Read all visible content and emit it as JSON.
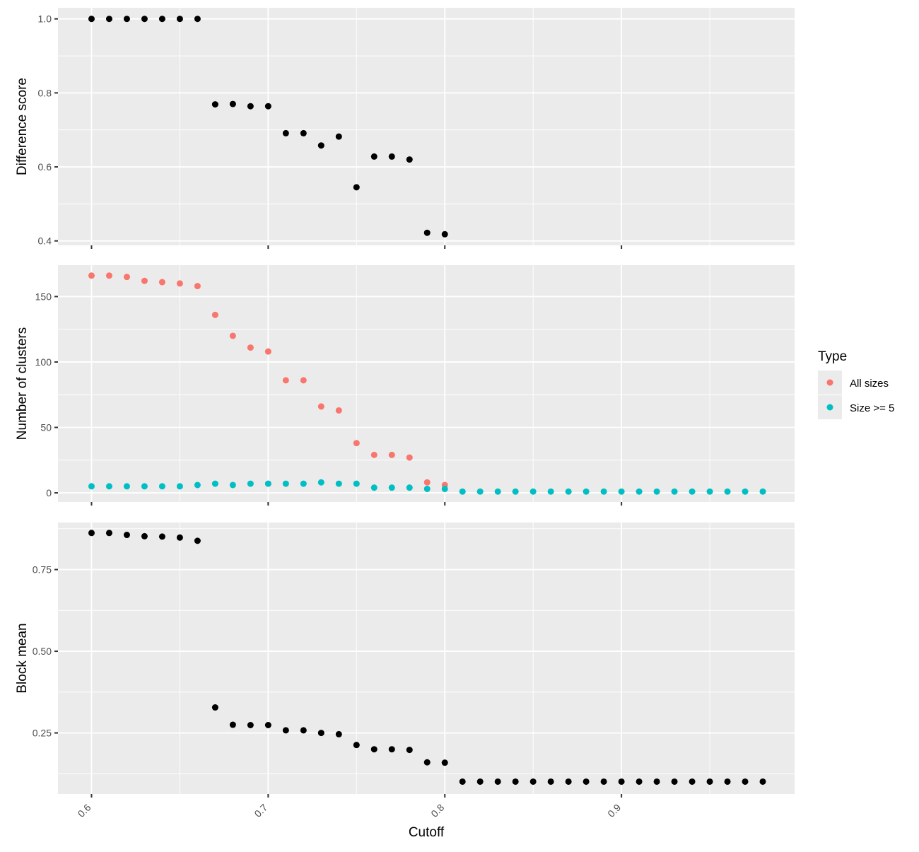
{
  "chart_data": {
    "type": "scatter",
    "xlabel": "Cutoff",
    "x_ticks": [
      "0.6",
      "0.7",
      "0.8",
      "0.9"
    ],
    "x_tick_values": [
      0.6,
      0.7,
      0.8,
      0.9
    ],
    "xlim": [
      0.581,
      0.998
    ],
    "grid": true,
    "legend_position": "right",
    "legend": {
      "title": "Type",
      "entries": [
        {
          "label": "All sizes",
          "color": "#F8766D"
        },
        {
          "label": "Size >= 5",
          "color": "#00BFC4"
        }
      ]
    },
    "colors": {
      "panel_bg": "#EBEBEB",
      "grid": "#FFFFFF",
      "point_default": "#000000"
    },
    "panels": [
      {
        "ylabel": "Difference score",
        "ylim": [
          0.388,
          1.03
        ],
        "y_ticks": [
          "0.4",
          "0.6",
          "0.8",
          "1.0"
        ],
        "y_tick_values": [
          0.4,
          0.6,
          0.8,
          1.0
        ],
        "series": [
          {
            "color": "#000000",
            "x": [
              0.6,
              0.61,
              0.62,
              0.63,
              0.64,
              0.65,
              0.66,
              0.67,
              0.68,
              0.69,
              0.7,
              0.71,
              0.72,
              0.73,
              0.74,
              0.75,
              0.76,
              0.77,
              0.78,
              0.79,
              0.8
            ],
            "y": [
              1.0,
              1.0,
              1.0,
              1.0,
              1.0,
              1.0,
              1.0,
              0.769,
              0.77,
              0.764,
              0.764,
              0.691,
              0.691,
              0.658,
              0.682,
              0.545,
              0.628,
              0.628,
              0.62,
              0.422,
              0.418
            ]
          }
        ]
      },
      {
        "ylabel": "Number of clusters",
        "ylim": [
          -7,
          174
        ],
        "y_ticks": [
          "0",
          "50",
          "100",
          "150"
        ],
        "y_tick_values": [
          0,
          50,
          100,
          150
        ],
        "series": [
          {
            "name": "All sizes",
            "color": "#F8766D",
            "x": [
              0.6,
              0.61,
              0.62,
              0.63,
              0.64,
              0.65,
              0.66,
              0.67,
              0.68,
              0.69,
              0.7,
              0.71,
              0.72,
              0.73,
              0.74,
              0.75,
              0.76,
              0.77,
              0.78,
              0.79,
              0.8
            ],
            "y": [
              166,
              166,
              165,
              162,
              161,
              160,
              158,
              136,
              120,
              111,
              108,
              86,
              86,
              66,
              63,
              38,
              29,
              29,
              27,
              8,
              6
            ]
          },
          {
            "name": "Size >= 5",
            "color": "#00BFC4",
            "x": [
              0.6,
              0.61,
              0.62,
              0.63,
              0.64,
              0.65,
              0.66,
              0.67,
              0.68,
              0.69,
              0.7,
              0.71,
              0.72,
              0.73,
              0.74,
              0.75,
              0.76,
              0.77,
              0.78,
              0.79,
              0.8,
              0.81,
              0.82,
              0.83,
              0.84,
              0.85,
              0.86,
              0.87,
              0.88,
              0.89,
              0.9,
              0.91,
              0.92,
              0.93,
              0.94,
              0.95,
              0.96,
              0.97,
              0.98
            ],
            "y": [
              5,
              5,
              5,
              5,
              5,
              5,
              6,
              7,
              6,
              7,
              7,
              7,
              7,
              8,
              7,
              7,
              4,
              4,
              4,
              3,
              3,
              1,
              1,
              1,
              1,
              1,
              1,
              1,
              1,
              1,
              1,
              1,
              1,
              1,
              1,
              1,
              1,
              1,
              1
            ]
          }
        ]
      },
      {
        "ylabel": "Block mean",
        "ylim": [
          0.063,
          0.894
        ],
        "y_ticks": [
          "0.25",
          "0.50",
          "0.75"
        ],
        "y_tick_values": [
          0.25,
          0.5,
          0.75
        ],
        "series": [
          {
            "color": "#000000",
            "x": [
              0.6,
              0.61,
              0.62,
              0.63,
              0.64,
              0.65,
              0.66,
              0.67,
              0.68,
              0.69,
              0.7,
              0.71,
              0.72,
              0.73,
              0.74,
              0.75,
              0.76,
              0.77,
              0.78,
              0.79,
              0.8,
              0.81,
              0.82,
              0.83,
              0.84,
              0.85,
              0.86,
              0.87,
              0.88,
              0.89,
              0.9,
              0.91,
              0.92,
              0.93,
              0.94,
              0.95,
              0.96,
              0.97,
              0.98
            ],
            "y": [
              0.862,
              0.862,
              0.856,
              0.852,
              0.851,
              0.848,
              0.838,
              0.328,
              0.275,
              0.274,
              0.274,
              0.258,
              0.258,
              0.25,
              0.246,
              0.213,
              0.2,
              0.2,
              0.198,
              0.16,
              0.159,
              0.101,
              0.101,
              0.101,
              0.101,
              0.101,
              0.101,
              0.101,
              0.101,
              0.101,
              0.101,
              0.101,
              0.101,
              0.101,
              0.101,
              0.101,
              0.101,
              0.101,
              0.101
            ]
          }
        ]
      }
    ]
  }
}
